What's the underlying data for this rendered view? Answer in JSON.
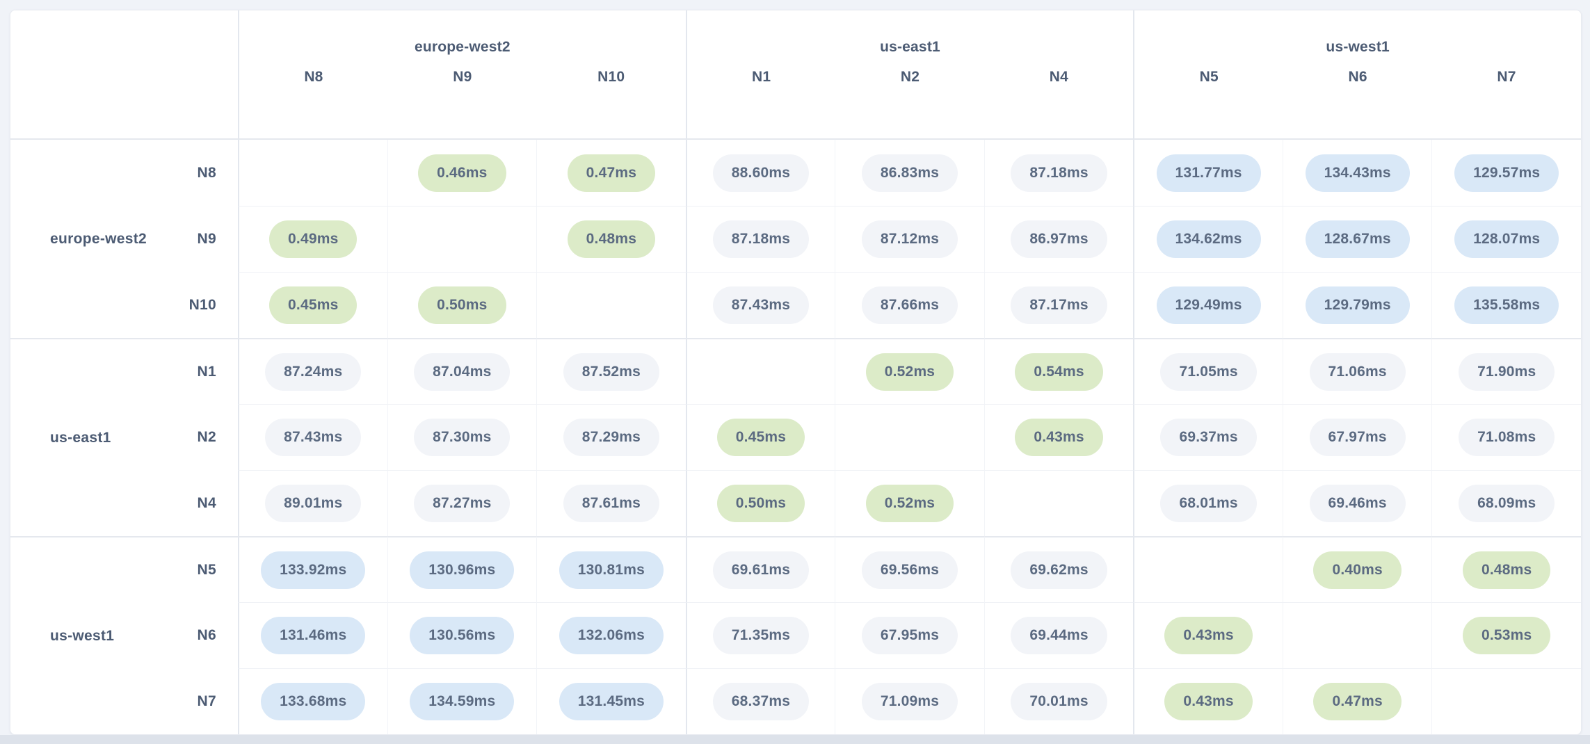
{
  "colors": {
    "page_bg": "#f0f3f8",
    "card_bg": "#ffffff",
    "pill_green": "#dcebc8",
    "pill_gray": "#f2f4f8",
    "pill_blue": "#d9e8f7",
    "header_text": "#4c5b73",
    "cell_text": "#5b6a81",
    "border_light": "#f0f2f6",
    "border_group": "#e3e7ee"
  },
  "chart_data": {
    "type": "heatmap",
    "unit": "ms",
    "palette_rule": {
      "green_below_ms": 1,
      "blue_above_ms": 100
    },
    "col_groups": [
      {
        "region": "europe-west2",
        "nodes": [
          "N8",
          "N9",
          "N10"
        ]
      },
      {
        "region": "us-east1",
        "nodes": [
          "N1",
          "N2",
          "N4"
        ]
      },
      {
        "region": "us-west1",
        "nodes": [
          "N5",
          "N6",
          "N7"
        ]
      }
    ],
    "row_groups": [
      {
        "region": "europe-west2",
        "nodes": [
          "N8",
          "N9",
          "N10"
        ]
      },
      {
        "region": "us-east1",
        "nodes": [
          "N1",
          "N2",
          "N4"
        ]
      },
      {
        "region": "us-west1",
        "nodes": [
          "N5",
          "N6",
          "N7"
        ]
      }
    ],
    "columns": [
      "N8",
      "N9",
      "N10",
      "N1",
      "N2",
      "N4",
      "N5",
      "N6",
      "N7"
    ],
    "rows": [
      {
        "node": "N8",
        "region": "europe-west2",
        "values": [
          null,
          0.46,
          0.47,
          88.6,
          86.83,
          87.18,
          131.77,
          134.43,
          129.57
        ],
        "cells": [
          "",
          "0.46ms",
          "0.47ms",
          "88.60ms",
          "86.83ms",
          "87.18ms",
          "131.77ms",
          "134.43ms",
          "129.57ms"
        ]
      },
      {
        "node": "N9",
        "region": "europe-west2",
        "values": [
          0.49,
          null,
          0.48,
          87.18,
          87.12,
          86.97,
          134.62,
          128.67,
          128.07
        ],
        "cells": [
          "0.49ms",
          "",
          "0.48ms",
          "87.18ms",
          "87.12ms",
          "86.97ms",
          "134.62ms",
          "128.67ms",
          "128.07ms"
        ]
      },
      {
        "node": "N10",
        "region": "europe-west2",
        "values": [
          0.45,
          0.5,
          null,
          87.43,
          87.66,
          87.17,
          129.49,
          129.79,
          135.58
        ],
        "cells": [
          "0.45ms",
          "0.50ms",
          "",
          "87.43ms",
          "87.66ms",
          "87.17ms",
          "129.49ms",
          "129.79ms",
          "135.58ms"
        ]
      },
      {
        "node": "N1",
        "region": "us-east1",
        "values": [
          87.24,
          87.04,
          87.52,
          null,
          0.52,
          0.54,
          71.05,
          71.06,
          71.9
        ],
        "cells": [
          "87.24ms",
          "87.04ms",
          "87.52ms",
          "",
          "0.52ms",
          "0.54ms",
          "71.05ms",
          "71.06ms",
          "71.90ms"
        ]
      },
      {
        "node": "N2",
        "region": "us-east1",
        "values": [
          87.43,
          87.3,
          87.29,
          0.45,
          null,
          0.43,
          69.37,
          67.97,
          71.08
        ],
        "cells": [
          "87.43ms",
          "87.30ms",
          "87.29ms",
          "0.45ms",
          "",
          "0.43ms",
          "69.37ms",
          "67.97ms",
          "71.08ms"
        ]
      },
      {
        "node": "N4",
        "region": "us-east1",
        "values": [
          89.01,
          87.27,
          87.61,
          0.5,
          0.52,
          null,
          68.01,
          69.46,
          68.09
        ],
        "cells": [
          "89.01ms",
          "87.27ms",
          "87.61ms",
          "0.50ms",
          "0.52ms",
          "",
          "68.01ms",
          "69.46ms",
          "68.09ms"
        ]
      },
      {
        "node": "N5",
        "region": "us-west1",
        "values": [
          133.92,
          130.96,
          130.81,
          69.61,
          69.56,
          69.62,
          null,
          0.4,
          0.48
        ],
        "cells": [
          "133.92ms",
          "130.96ms",
          "130.81ms",
          "69.61ms",
          "69.56ms",
          "69.62ms",
          "",
          "0.40ms",
          "0.48ms"
        ]
      },
      {
        "node": "N6",
        "region": "us-west1",
        "values": [
          131.46,
          130.56,
          132.06,
          71.35,
          67.95,
          69.44,
          0.43,
          null,
          0.53
        ],
        "cells": [
          "131.46ms",
          "130.56ms",
          "132.06ms",
          "71.35ms",
          "67.95ms",
          "69.44ms",
          "0.43ms",
          "",
          "0.53ms"
        ]
      },
      {
        "node": "N7",
        "region": "us-west1",
        "values": [
          133.68,
          134.59,
          131.45,
          68.37,
          71.09,
          70.01,
          0.43,
          0.47,
          null
        ],
        "cells": [
          "133.68ms",
          "134.59ms",
          "131.45ms",
          "68.37ms",
          "71.09ms",
          "70.01ms",
          "0.43ms",
          "0.47ms",
          ""
        ]
      }
    ]
  }
}
